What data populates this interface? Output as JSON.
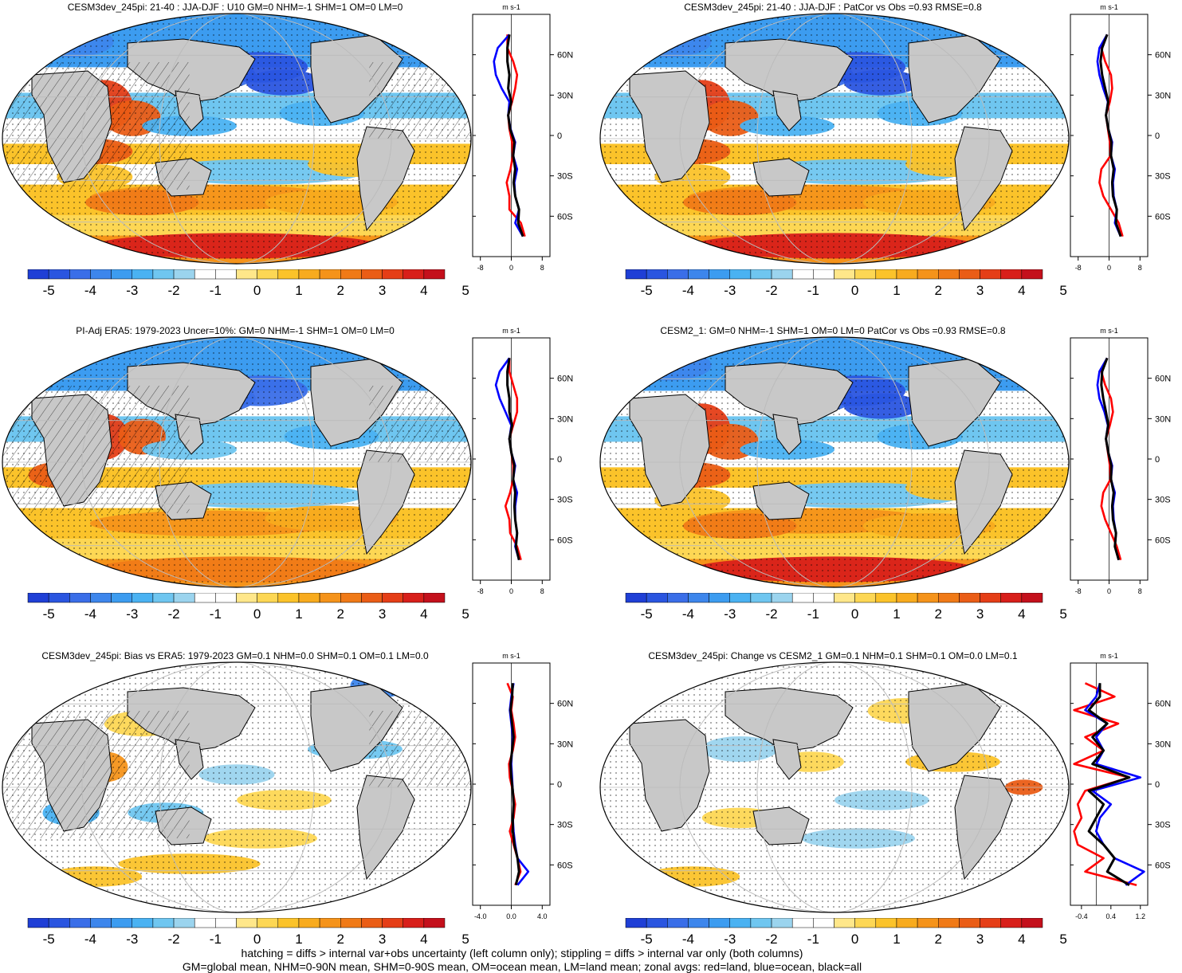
{
  "colors": {
    "scale": [
      "#1f3fd6",
      "#2a55e0",
      "#3a6ee8",
      "#3d86ec",
      "#3c9cf0",
      "#4ab2f2",
      "#6fc6f0",
      "#9bd4ee",
      "#ffffff",
      "#ffffff",
      "#ffe78a",
      "#fdd754",
      "#fbc32a",
      "#f8ab1e",
      "#f5931a",
      "#f07a17",
      "#ea5d16",
      "#e53e17",
      "#d81f1a",
      "#c4101c"
    ],
    "land": "#c8c8c8",
    "zonal_land": "#ff0000",
    "zonal_ocean": "#0000ff",
    "zonal_all": "#000000"
  },
  "colorbar": {
    "labels": [
      "-5",
      "-4",
      "-3",
      "-2",
      "-1",
      "0",
      "1",
      "2",
      "3",
      "4",
      "5"
    ]
  },
  "panels": [
    {
      "id": "a",
      "title": "CESM3dev_245pi: 21-40 : JJA-DJF : U10 GM=0 NHM=-1 SHM=1 OM=0 LM=0",
      "units": "m s-1",
      "lat_ticks": [
        "60N",
        "30N",
        "0",
        "30S",
        "60S"
      ],
      "x_ticks": [
        "-8",
        "0",
        "8"
      ],
      "xlim": [
        -10,
        10
      ],
      "hatching": true,
      "chart_data": {
        "type": "line",
        "lat": [
          75,
          65,
          55,
          45,
          35,
          25,
          15,
          5,
          -5,
          -15,
          -25,
          -35,
          -45,
          -55,
          -65,
          -75
        ],
        "series": [
          {
            "name": "land",
            "values": [
              -1,
              -1,
              0.5,
              1.5,
              1.0,
              0.2,
              -0.8,
              -0.5,
              0.2,
              0.4,
              -0.2,
              -1.2,
              -0.5,
              -0.5,
              2.5,
              3.5
            ]
          },
          {
            "name": "ocean",
            "values": [
              -0.5,
              -3.5,
              -4.5,
              -4.0,
              -2.5,
              -0.5,
              -0.8,
              -0.2,
              1.0,
              0.5,
              1.5,
              0.8,
              1.0,
              2.0,
              1.0,
              3.0
            ]
          },
          {
            "name": "all",
            "values": [
              -0.5,
              -1.0,
              -1.0,
              -0.5,
              -0.8,
              0.0,
              -0.8,
              -0.3,
              0.8,
              0.5,
              1.0,
              0.6,
              1.0,
              2.0,
              1.8,
              3.0
            ]
          }
        ]
      }
    },
    {
      "id": "b",
      "title": "CESM3dev_245pi: 21-40 : JJA-DJF : PatCor vs Obs =0.93 RMSE=0.8",
      "units": "m s-1",
      "lat_ticks": [
        "60N",
        "30N",
        "0",
        "30S",
        "60S"
      ],
      "x_ticks": [
        "-8",
        "0",
        "8"
      ],
      "xlim": [
        -10,
        10
      ],
      "hatching": false,
      "chart_data": {
        "type": "line",
        "lat": [
          75,
          65,
          55,
          45,
          35,
          25,
          15,
          5,
          -5,
          -15,
          -25,
          -35,
          -45,
          -55,
          -65,
          -75
        ],
        "series": [
          {
            "name": "land",
            "values": [
              -0.5,
              -2.0,
              -1.0,
              0.5,
              0.8,
              0.2,
              -0.8,
              -0.3,
              0.2,
              0.4,
              -2.0,
              -2.5,
              -1.5,
              0.5,
              2.5,
              3.5
            ]
          },
          {
            "name": "ocean",
            "values": [
              -0.5,
              -2.5,
              -3.0,
              -2.5,
              -1.5,
              -0.3,
              -0.8,
              -0.2,
              0.8,
              0.5,
              1.5,
              1.0,
              1.2,
              2.0,
              1.5,
              3.0
            ]
          },
          {
            "name": "all",
            "values": [
              -0.5,
              -1.8,
              -2.2,
              -1.8,
              -1.0,
              -0.2,
              -0.8,
              -0.2,
              0.6,
              0.5,
              1.2,
              0.8,
              1.0,
              2.0,
              1.8,
              3.0
            ]
          }
        ]
      }
    },
    {
      "id": "c",
      "title": "PI-Adj ERA5: 1979-2023 Uncer=10%: GM=0 NHM=-1 SHM=1 OM=0 LM=0",
      "units": "m s-1",
      "lat_ticks": [
        "60N",
        "30N",
        "0",
        "30S",
        "60S"
      ],
      "x_ticks": [
        "-8",
        "0",
        "8"
      ],
      "xlim": [
        -10,
        10
      ],
      "hatching": true,
      "chart_data": {
        "type": "line",
        "lat": [
          75,
          65,
          55,
          45,
          35,
          25,
          15,
          5,
          -5,
          -15,
          -25,
          -35,
          -45,
          -55,
          -65,
          -75
        ],
        "series": [
          {
            "name": "land",
            "values": [
              -0.5,
              -0.5,
              0.5,
              1.5,
              1.5,
              0.5,
              -0.5,
              0.0,
              0.5,
              0.5,
              -0.3,
              -1.5,
              -0.5,
              -0.3,
              1.5,
              2.5
            ]
          },
          {
            "name": "ocean",
            "values": [
              -0.5,
              -3.0,
              -4.0,
              -3.0,
              -1.5,
              0.0,
              -0.5,
              0.0,
              1.0,
              0.5,
              1.5,
              1.0,
              1.0,
              1.5,
              1.0,
              2.0
            ]
          },
          {
            "name": "all",
            "values": [
              -0.5,
              -1.0,
              -1.0,
              -0.5,
              -0.5,
              0.2,
              -0.5,
              0.0,
              0.8,
              0.5,
              1.0,
              0.8,
              1.0,
              1.5,
              1.2,
              2.0
            ]
          }
        ]
      }
    },
    {
      "id": "d",
      "title": "CESM2_1: GM=0 NHM=-1 SHM=1 OM=0 LM=0 PatCor vs Obs =0.93 RMSE=0.8",
      "units": "m s-1",
      "lat_ticks": [
        "60N",
        "30N",
        "0",
        "30S",
        "60S"
      ],
      "x_ticks": [
        "-8",
        "0",
        "8"
      ],
      "xlim": [
        -10,
        10
      ],
      "hatching": false,
      "chart_data": {
        "type": "line",
        "lat": [
          75,
          65,
          55,
          45,
          35,
          25,
          15,
          5,
          -5,
          -15,
          -25,
          -35,
          -45,
          -55,
          -65,
          -75
        ],
        "series": [
          {
            "name": "land",
            "values": [
              -0.5,
              -2.0,
              -1.0,
              0.5,
              1.0,
              0.2,
              -0.8,
              -0.3,
              0.2,
              0.4,
              -1.5,
              -2.0,
              -1.0,
              0.5,
              2.0,
              3.0
            ]
          },
          {
            "name": "ocean",
            "values": [
              -0.5,
              -2.5,
              -3.0,
              -2.5,
              -1.2,
              -0.3,
              -0.8,
              -0.2,
              0.8,
              0.5,
              1.5,
              1.0,
              1.2,
              1.8,
              1.5,
              2.5
            ]
          },
          {
            "name": "all",
            "values": [
              -0.5,
              -1.8,
              -2.0,
              -1.5,
              -0.8,
              -0.2,
              -0.8,
              -0.2,
              0.6,
              0.5,
              1.2,
              0.8,
              1.0,
              1.8,
              1.5,
              2.5
            ]
          }
        ]
      }
    },
    {
      "id": "e",
      "title": "CESM3dev_245pi: Bias vs ERA5: 1979-2023 GM=0.1 NHM=0.0 SHM=0.1 OM=0.1 LM=0.0",
      "units": "m s-1",
      "lat_ticks": [
        "60N",
        "30N",
        "0",
        "30S",
        "60S"
      ],
      "x_ticks": [
        "-4.0",
        "0.0",
        "4.0"
      ],
      "xlim": [
        -5,
        5
      ],
      "hatching": true,
      "chart_data": {
        "type": "line",
        "lat": [
          75,
          65,
          55,
          45,
          35,
          25,
          15,
          5,
          -5,
          -15,
          -25,
          -35,
          -45,
          -55,
          -65,
          -75
        ],
        "series": [
          {
            "name": "land",
            "values": [
              -0.5,
              0.2,
              0.0,
              0.3,
              0.5,
              0.2,
              -0.3,
              -0.2,
              0.2,
              0.5,
              0.3,
              -0.2,
              0.3,
              0.8,
              1.2,
              0.5
            ]
          },
          {
            "name": "ocean",
            "values": [
              0.3,
              0.0,
              -0.2,
              0.0,
              0.2,
              0.1,
              0.0,
              0.1,
              0.2,
              0.3,
              0.2,
              0.3,
              0.5,
              0.8,
              2.2,
              0.8
            ]
          },
          {
            "name": "all",
            "values": [
              0.2,
              0.1,
              -0.1,
              0.1,
              0.3,
              0.1,
              -0.1,
              0.0,
              0.2,
              0.3,
              0.2,
              0.2,
              0.4,
              0.8,
              1.0,
              0.6
            ]
          }
        ]
      }
    },
    {
      "id": "f",
      "title": "CESM3dev_245pi: Change vs CESM2_1 GM=0.1 NHM=0.1 SHM=0.1 OM=0.0 LM=0.1",
      "units": "m s-1",
      "lat_ticks": [
        "60N",
        "30N",
        "0",
        "30S",
        "60S"
      ],
      "x_ticks": [
        "-0.4",
        "0.4",
        "1.2"
      ],
      "xlim": [
        -0.7,
        1.4
      ],
      "hatching": false,
      "chart_data": {
        "type": "line",
        "lat": [
          75,
          65,
          55,
          45,
          35,
          25,
          15,
          5,
          -5,
          -15,
          -25,
          -35,
          -45,
          -55,
          -65,
          -75
        ],
        "series": [
          {
            "name": "land",
            "values": [
              -0.3,
              0.5,
              -0.6,
              0.6,
              -0.3,
              0.2,
              -0.6,
              0.9,
              -0.3,
              -0.5,
              -0.4,
              -0.6,
              -0.5,
              0.2,
              -0.3,
              1.1
            ]
          },
          {
            "name": "ocean",
            "values": [
              0.1,
              0.0,
              -0.3,
              0.3,
              0.0,
              0.2,
              0.0,
              1.2,
              -0.1,
              0.4,
              0.1,
              0.0,
              0.2,
              0.5,
              1.3,
              0.8
            ]
          },
          {
            "name": "all",
            "values": [
              0.1,
              0.1,
              -0.2,
              0.3,
              -0.1,
              0.2,
              -0.1,
              0.9,
              -0.2,
              0.2,
              0.0,
              -0.2,
              0.2,
              0.5,
              0.3,
              0.9
            ]
          }
        ]
      }
    }
  ],
  "footnotes": [
    "hatching = diffs > internal var+obs uncertainty (left column only); stippling = diffs > internal var only (both columns)",
    "GM=global mean, NHM=0-90N mean, SHM=0-90S mean, OM=ocean mean, LM=land mean; zonal avgs: red=land, blue=ocean, black=all"
  ]
}
